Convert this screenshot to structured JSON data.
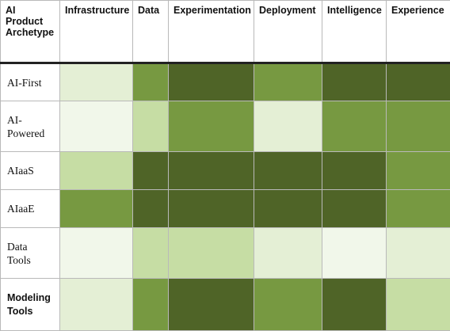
{
  "table": {
    "corner_label": "AI\nProduct\nArchetype",
    "columns": [
      "Infrastructure",
      "Data",
      "Experimentation",
      "Deployment",
      "Intelligence",
      "Experience"
    ],
    "row_heights_note": "",
    "rows": [
      {
        "label": "AI-First",
        "bold": false,
        "levels": [
          "light",
          "green",
          "dark",
          "green",
          "dark",
          "dark"
        ]
      },
      {
        "label": "AI-\nPowered",
        "bold": false,
        "levels": [
          "pale",
          "mid",
          "green",
          "light",
          "green",
          "green"
        ]
      },
      {
        "label": "AIaaS",
        "bold": false,
        "levels": [
          "mid",
          "dark",
          "dark",
          "dark",
          "dark",
          "green"
        ]
      },
      {
        "label": "AIaaE",
        "bold": false,
        "levels": [
          "green",
          "dark",
          "dark",
          "dark",
          "dark",
          "green"
        ]
      },
      {
        "label": "Data\nTools",
        "bold": false,
        "levels": [
          "pale",
          "mid",
          "mid",
          "light",
          "pale",
          "light"
        ]
      },
      {
        "label": "Modeling\nTools",
        "bold": true,
        "levels": [
          "light",
          "green",
          "dark",
          "green",
          "dark",
          "mid"
        ]
      }
    ]
  },
  "colors": {
    "pale": "#f1f7ea",
    "light": "#e4efd5",
    "mid": "#c6dda4",
    "green": "#779941",
    "dark": "#4f6427"
  }
}
